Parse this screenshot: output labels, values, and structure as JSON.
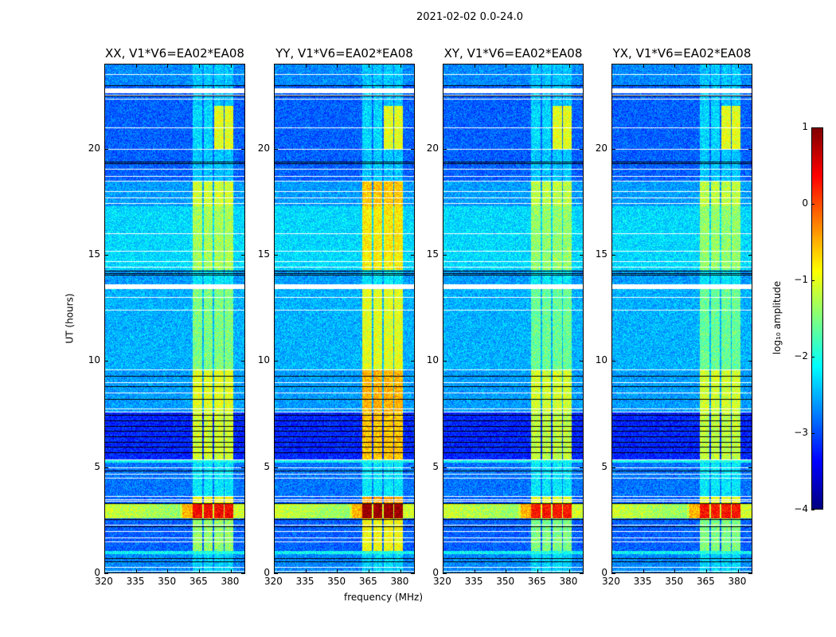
{
  "chart_data": {
    "type": "heatmap",
    "title": "2021-02-02 0.0-24.0",
    "xlabel": "frequency (MHz)",
    "ylabel": "UT (hours)",
    "xlim": [
      320,
      387
    ],
    "ylim": [
      0,
      24
    ],
    "xticks": [
      320,
      335,
      350,
      365,
      380
    ],
    "yticks": [
      0,
      5,
      10,
      15,
      20
    ],
    "panels": [
      {
        "title": "XX, V1*V6=EA02*EA08",
        "band_boost": 0
      },
      {
        "title": "YY, V1*V6=EA02*EA08",
        "band_boost": 0.5
      },
      {
        "title": "XY, V1*V6=EA02*EA08",
        "band_boost": -0.1
      },
      {
        "title": "YX, V1*V6=EA02*EA08",
        "band_boost": -0.1
      }
    ],
    "colorbar": {
      "label": "log₁₀ amplitude",
      "range": [
        -4,
        1
      ],
      "ticks": [
        1,
        0,
        -1,
        -2,
        -3,
        -4
      ],
      "tick_labels": [
        "1",
        "0",
        "−1",
        "−2",
        "−3",
        "−4"
      ],
      "colormap": "jet"
    },
    "rfi_subbands_mhz": [
      [
        362,
        366.6
      ],
      [
        367.2,
        371.6
      ],
      [
        372.2,
        376.6
      ],
      [
        377.2,
        381.2
      ]
    ],
    "time_segments": [
      {
        "t": [
          0,
          0.9
        ],
        "bg": -2.7,
        "band": -2.3
      },
      {
        "t": [
          0.9,
          1.05
        ],
        "bg": -2.1,
        "band": -2.0
      },
      {
        "t": [
          1.05,
          2.6
        ],
        "bg": -2.9,
        "band": -1.4
      },
      {
        "t": [
          2.6,
          3.3
        ],
        "bg": -1.1,
        "band": 0.4
      },
      {
        "t": [
          3.3,
          3.6
        ],
        "bg": -2.9,
        "band": -0.9
      },
      {
        "t": [
          3.6,
          5.2
        ],
        "bg": -2.8,
        "band": -2.2
      },
      {
        "t": [
          5.2,
          5.35
        ],
        "bg": -2.1,
        "band": -2.0
      },
      {
        "t": [
          5.35,
          7.6
        ],
        "bg": -3.2,
        "band": -1.1
      },
      {
        "t": [
          7.6,
          9.6
        ],
        "bg": -2.6,
        "band": -1.0
      },
      {
        "t": [
          9.6,
          13.4
        ],
        "bg": -2.5,
        "band": -1.5
      },
      {
        "t": [
          13.6,
          14.3
        ],
        "bg": -2.6,
        "band": -2.2
      },
      {
        "t": [
          14.3,
          17.3
        ],
        "bg": -2.3,
        "band": -1.3
      },
      {
        "t": [
          17.3,
          18.5
        ],
        "bg": -2.6,
        "band": -1.1
      },
      {
        "t": [
          18.5,
          20.0
        ],
        "bg": -2.9,
        "band": -2.4
      },
      {
        "t": [
          20.0,
          22.0
        ],
        "bg": -2.9,
        "band": -2.3,
        "upper_band": -1.0
      },
      {
        "t": [
          22.0,
          23.0
        ],
        "bg": -2.9,
        "band": -2.4
      },
      {
        "t": [
          23.0,
          24.0
        ],
        "bg": -2.7,
        "band": -2.4
      }
    ],
    "flagged_white_hours": [
      0.1,
      0.3,
      1.5,
      1.7,
      2.0,
      2.3,
      3.4,
      3.5,
      3.65,
      4.5,
      4.7,
      5.0,
      5.35,
      7.6,
      7.75,
      8.5,
      9.0,
      9.6,
      12.4,
      13.0,
      13.45,
      13.55,
      14.45,
      14.7,
      15.2,
      16.0,
      17.45,
      17.7,
      18.0,
      18.5,
      18.7,
      19.05,
      20.0,
      21.0,
      22.35,
      22.55,
      23.5
    ],
    "flagged_black_hours": [
      0.55,
      0.7,
      2.2,
      2.55,
      3.3,
      4.85,
      5.7,
      5.95,
      6.2,
      6.45,
      6.7,
      6.95,
      7.2,
      7.45,
      8.2,
      8.8,
      9.3,
      13.55,
      14.05,
      14.15,
      14.25,
      19.3,
      19.4,
      22.5,
      23.0
    ]
  }
}
